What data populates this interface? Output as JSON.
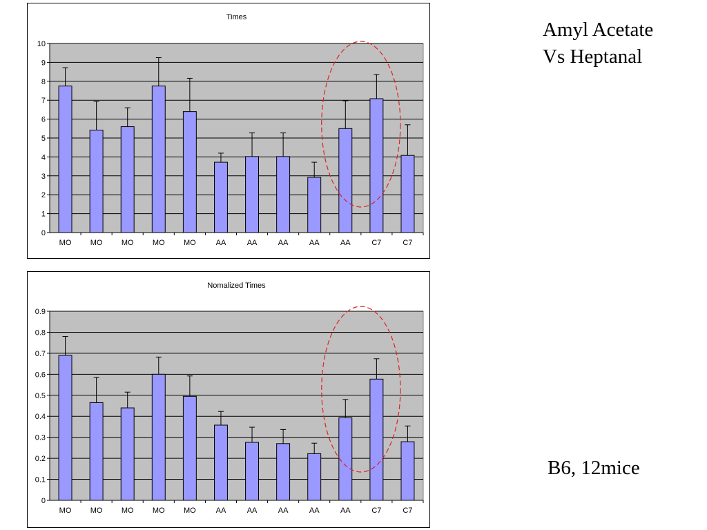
{
  "side_title": {
    "line1": "Amyl Acetate",
    "line2": "Vs Heptanal"
  },
  "side_note": "B6, 12mice",
  "colors": {
    "bar_fill": "#9999ff",
    "plot_bg": "#c0c0c0",
    "highlight_ellipse": "#e02020"
  },
  "chart_data": [
    {
      "type": "bar",
      "title": "Times",
      "xlabel": "",
      "ylabel": "",
      "categories": [
        "MO",
        "MO",
        "MO",
        "MO",
        "MO",
        "AA",
        "AA",
        "AA",
        "AA",
        "AA",
        "C7",
        "C7"
      ],
      "values": [
        7.75,
        5.42,
        5.6,
        7.75,
        6.4,
        3.72,
        4.02,
        4.02,
        2.92,
        5.5,
        7.08,
        4.08
      ],
      "error": [
        0.97,
        1.52,
        1.0,
        1.5,
        1.76,
        0.48,
        1.25,
        1.25,
        0.8,
        1.47,
        1.28,
        1.62
      ],
      "ylim": [
        0,
        10
      ],
      "yticks": [
        "0",
        "1",
        "2",
        "3",
        "4",
        "5",
        "6",
        "7",
        "8",
        "9",
        "10"
      ],
      "grid": true,
      "legend": "none"
    },
    {
      "type": "bar",
      "title": "Nomalized Times",
      "xlabel": "",
      "ylabel": "",
      "categories": [
        "MO",
        "MO",
        "MO",
        "MO",
        "MO",
        "AA",
        "AA",
        "AA",
        "AA",
        "AA",
        "C7",
        "C7"
      ],
      "values": [
        0.69,
        0.465,
        0.44,
        0.6,
        0.495,
        0.358,
        0.276,
        0.27,
        0.222,
        0.393,
        0.577,
        0.279
      ],
      "error": [
        0.09,
        0.12,
        0.075,
        0.082,
        0.097,
        0.065,
        0.072,
        0.067,
        0.05,
        0.087,
        0.097,
        0.075
      ],
      "ylim": [
        0,
        0.9
      ],
      "yticks": [
        "0",
        "0.1",
        "0.2",
        "0.3",
        "0.4",
        "0.5",
        "0.6",
        "0.7",
        "0.8",
        "0.9"
      ],
      "grid": true,
      "legend": "none"
    }
  ]
}
